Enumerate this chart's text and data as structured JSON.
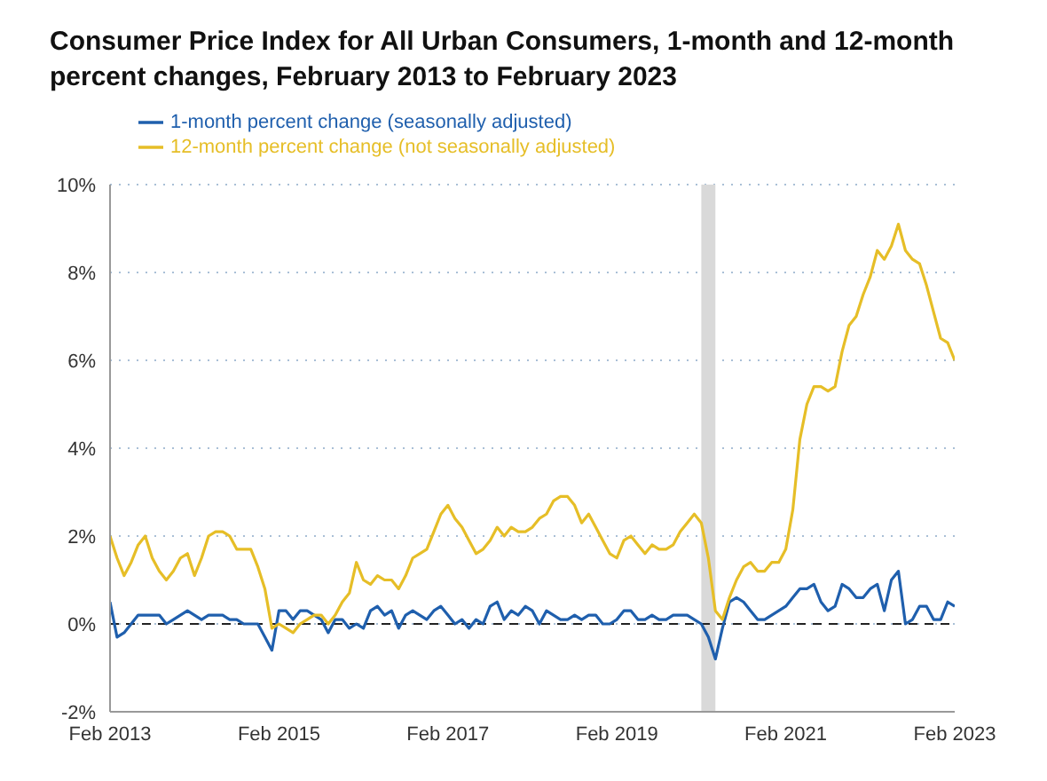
{
  "chart_data": {
    "type": "line",
    "title": "Consumer Price Index for All Urban Consumers, 1-month and 12-month percent changes, February 2013 to February 2023",
    "x": [
      "2013-02",
      "2013-03",
      "2013-04",
      "2013-05",
      "2013-06",
      "2013-07",
      "2013-08",
      "2013-09",
      "2013-10",
      "2013-11",
      "2013-12",
      "2014-01",
      "2014-02",
      "2014-03",
      "2014-04",
      "2014-05",
      "2014-06",
      "2014-07",
      "2014-08",
      "2014-09",
      "2014-10",
      "2014-11",
      "2014-12",
      "2015-01",
      "2015-02",
      "2015-03",
      "2015-04",
      "2015-05",
      "2015-06",
      "2015-07",
      "2015-08",
      "2015-09",
      "2015-10",
      "2015-11",
      "2015-12",
      "2016-01",
      "2016-02",
      "2016-03",
      "2016-04",
      "2016-05",
      "2016-06",
      "2016-07",
      "2016-08",
      "2016-09",
      "2016-10",
      "2016-11",
      "2016-12",
      "2017-01",
      "2017-02",
      "2017-03",
      "2017-04",
      "2017-05",
      "2017-06",
      "2017-07",
      "2017-08",
      "2017-09",
      "2017-10",
      "2017-11",
      "2017-12",
      "2018-01",
      "2018-02",
      "2018-03",
      "2018-04",
      "2018-05",
      "2018-06",
      "2018-07",
      "2018-08",
      "2018-09",
      "2018-10",
      "2018-11",
      "2018-12",
      "2019-01",
      "2019-02",
      "2019-03",
      "2019-04",
      "2019-05",
      "2019-06",
      "2019-07",
      "2019-08",
      "2019-09",
      "2019-10",
      "2019-11",
      "2019-12",
      "2020-01",
      "2020-02",
      "2020-03",
      "2020-04",
      "2020-05",
      "2020-06",
      "2020-07",
      "2020-08",
      "2020-09",
      "2020-10",
      "2020-11",
      "2020-12",
      "2021-01",
      "2021-02",
      "2021-03",
      "2021-04",
      "2021-05",
      "2021-06",
      "2021-07",
      "2021-08",
      "2021-09",
      "2021-10",
      "2021-11",
      "2021-12",
      "2022-01",
      "2022-02",
      "2022-03",
      "2022-04",
      "2022-05",
      "2022-06",
      "2022-07",
      "2022-08",
      "2022-09",
      "2022-10",
      "2022-11",
      "2022-12",
      "2023-01",
      "2023-02"
    ],
    "series": [
      {
        "name": "1-month percent change (seasonally adjusted)",
        "color": "#1f5fad",
        "values": [
          0.5,
          -0.3,
          -0.2,
          0.0,
          0.2,
          0.2,
          0.2,
          0.2,
          0.0,
          0.1,
          0.2,
          0.3,
          0.2,
          0.1,
          0.2,
          0.2,
          0.2,
          0.1,
          0.1,
          0.0,
          0.0,
          0.0,
          -0.3,
          -0.6,
          0.3,
          0.3,
          0.1,
          0.3,
          0.3,
          0.2,
          0.1,
          -0.2,
          0.1,
          0.1,
          -0.1,
          0.0,
          -0.1,
          0.3,
          0.4,
          0.2,
          0.3,
          -0.1,
          0.2,
          0.3,
          0.2,
          0.1,
          0.3,
          0.4,
          0.2,
          0.0,
          0.1,
          -0.1,
          0.1,
          0.0,
          0.4,
          0.5,
          0.1,
          0.3,
          0.2,
          0.4,
          0.3,
          0.0,
          0.3,
          0.2,
          0.1,
          0.1,
          0.2,
          0.1,
          0.2,
          0.2,
          0.0,
          0.0,
          0.1,
          0.3,
          0.3,
          0.1,
          0.1,
          0.2,
          0.1,
          0.1,
          0.2,
          0.2,
          0.2,
          0.1,
          0.0,
          -0.3,
          -0.8,
          -0.1,
          0.5,
          0.6,
          0.5,
          0.3,
          0.1,
          0.1,
          0.2,
          0.3,
          0.4,
          0.6,
          0.8,
          0.8,
          0.9,
          0.5,
          0.3,
          0.4,
          0.9,
          0.8,
          0.6,
          0.6,
          0.8,
          0.9,
          0.3,
          1.0,
          1.2,
          0.0,
          0.1,
          0.4,
          0.4,
          0.1,
          0.1,
          0.5,
          0.4
        ]
      },
      {
        "name": "12-month percent change (not seasonally adjusted)",
        "color": "#e6be27",
        "values": [
          2.0,
          1.5,
          1.1,
          1.4,
          1.8,
          2.0,
          1.5,
          1.2,
          1.0,
          1.2,
          1.5,
          1.6,
          1.1,
          1.5,
          2.0,
          2.1,
          2.1,
          2.0,
          1.7,
          1.7,
          1.7,
          1.3,
          0.8,
          -0.1,
          0.0,
          -0.1,
          -0.2,
          0.0,
          0.1,
          0.2,
          0.2,
          0.0,
          0.2,
          0.5,
          0.7,
          1.4,
          1.0,
          0.9,
          1.1,
          1.0,
          1.0,
          0.8,
          1.1,
          1.5,
          1.6,
          1.7,
          2.1,
          2.5,
          2.7,
          2.4,
          2.2,
          1.9,
          1.6,
          1.7,
          1.9,
          2.2,
          2.0,
          2.2,
          2.1,
          2.1,
          2.2,
          2.4,
          2.5,
          2.8,
          2.9,
          2.9,
          2.7,
          2.3,
          2.5,
          2.2,
          1.9,
          1.6,
          1.5,
          1.9,
          2.0,
          1.8,
          1.6,
          1.8,
          1.7,
          1.7,
          1.8,
          2.1,
          2.3,
          2.5,
          2.3,
          1.5,
          0.3,
          0.1,
          0.6,
          1.0,
          1.3,
          1.4,
          1.2,
          1.2,
          1.4,
          1.4,
          1.7,
          2.6,
          4.2,
          5.0,
          5.4,
          5.4,
          5.3,
          5.4,
          6.2,
          6.8,
          7.0,
          7.5,
          7.9,
          8.5,
          8.3,
          8.6,
          9.1,
          8.5,
          8.3,
          8.2,
          7.7,
          7.1,
          6.5,
          6.4,
          6.0
        ]
      }
    ],
    "xlim": [
      "2013-02",
      "2023-02"
    ],
    "xticks": [
      {
        "value": "2013-02",
        "label": "Feb 2013"
      },
      {
        "value": "2015-02",
        "label": "Feb 2015"
      },
      {
        "value": "2017-02",
        "label": "Feb 2017"
      },
      {
        "value": "2019-02",
        "label": "Feb 2019"
      },
      {
        "value": "2021-02",
        "label": "Feb 2021"
      },
      {
        "value": "2023-02",
        "label": "Feb 2023"
      }
    ],
    "ylim": [
      -2,
      10
    ],
    "yticks": [
      {
        "value": -2,
        "label": "-2%"
      },
      {
        "value": 0,
        "label": "0%"
      },
      {
        "value": 2,
        "label": "2%"
      },
      {
        "value": 4,
        "label": "4%"
      },
      {
        "value": 6,
        "label": "6%"
      },
      {
        "value": 8,
        "label": "8%"
      },
      {
        "value": 10,
        "label": "10%"
      }
    ],
    "grid": "y",
    "legend": "top left",
    "marker": "none",
    "line_style": "solid",
    "ref_lines": [
      {
        "axis": "y",
        "value": 0,
        "color": "#222222",
        "line_style": "dashed"
      }
    ],
    "bands": [
      {
        "axis": "x",
        "from": "2020-02",
        "to": "2020-04",
        "color": "#d9d9d9"
      }
    ]
  }
}
